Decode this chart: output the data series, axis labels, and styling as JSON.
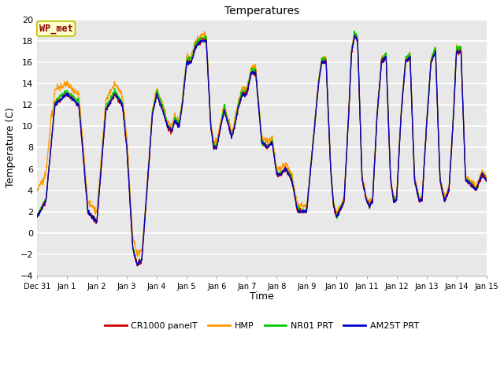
{
  "title": "Temperatures",
  "xlabel": "Time",
  "ylabel": "Temperature (C)",
  "ylim": [
    -4,
    20
  ],
  "yticks": [
    -4,
    -2,
    0,
    2,
    4,
    6,
    8,
    10,
    12,
    14,
    16,
    18,
    20
  ],
  "annotation": "WP_met",
  "bg_color": "#ffffff",
  "plot_bg": "#e8e8e8",
  "line_colors": {
    "CR1000 panelT": "#cc0000",
    "HMP": "#ff9900",
    "NR01 PRT": "#00cc00",
    "AM25T PRT": "#0000cc"
  },
  "legend_entries": [
    "CR1000 panelT",
    "HMP",
    "NR01 PRT",
    "AM25T PRT"
  ],
  "x_tick_labels": [
    "Dec 31",
    "Jan 1",
    "Jan 2",
    "Jan 3",
    "Jan 4",
    "Jan 5",
    "Jan 6",
    "Jan 7",
    "Jan 8",
    "Jan 9",
    "Jan 10",
    "Jan 11",
    "Jan 12",
    "Jan 13",
    "Jan 14",
    "Jan 15"
  ],
  "num_days": 16,
  "points_per_day": 96
}
